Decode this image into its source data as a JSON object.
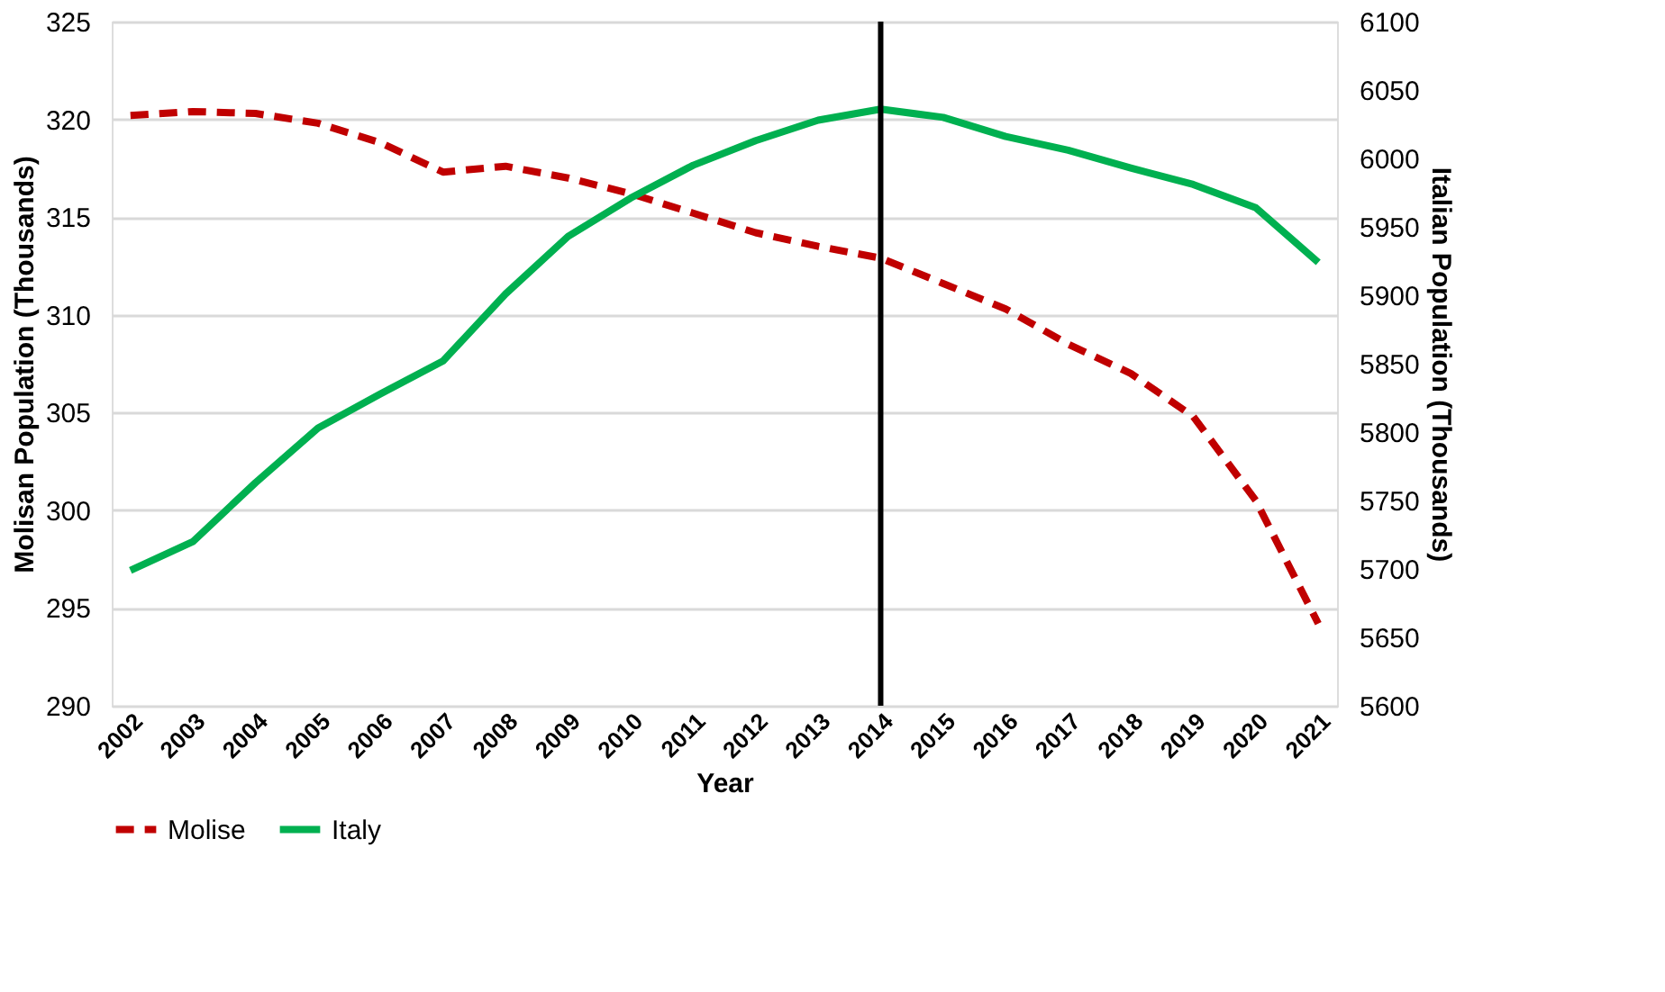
{
  "chart_data": {
    "type": "line",
    "xlabel": "Year",
    "ylabel": "Molisan Population (Thousands)",
    "y2label": "Italian Population (Thousands)",
    "categories": [
      "2002",
      "2003",
      "2004",
      "2005",
      "2006",
      "2007",
      "2008",
      "2009",
      "2010",
      "2011",
      "2012",
      "2013",
      "2014",
      "2015",
      "2016",
      "2017",
      "2018",
      "2019",
      "2020",
      "2021"
    ],
    "series": [
      {
        "name": "Molise",
        "color": "#c00000",
        "line_style": "dashed",
        "values": [
          320.2,
          320.4,
          320.3,
          319.8,
          318.8,
          317.3,
          317.6,
          317.0,
          316.2,
          315.2,
          314.2,
          313.5,
          312.9,
          311.6,
          310.3,
          308.5,
          307.0,
          304.8,
          300.5,
          294.2
        ]
      },
      {
        "name": "Italy",
        "color": "#00b050",
        "line_style": "solid",
        "axis": "y2",
        "values": [
          5699,
          5720,
          5763,
          5803,
          5828,
          5852,
          5901,
          5943,
          5971,
          5995,
          6013,
          6028,
          6036,
          6030,
          6016,
          6006,
          5993,
          5981,
          5964,
          5924
        ]
      }
    ],
    "ylim": [
      290,
      325
    ],
    "yticks": [
      290,
      295,
      300,
      305,
      310,
      315,
      320,
      325
    ],
    "y2lim": [
      5600,
      6100
    ],
    "y2ticks": [
      5600,
      5650,
      5700,
      5750,
      5800,
      5850,
      5900,
      5950,
      6000,
      6050,
      6100
    ],
    "ref_lines": [
      {
        "axis": "x",
        "value": "2014",
        "color": "#000000"
      }
    ],
    "grid": "y",
    "legend": "bottom"
  }
}
